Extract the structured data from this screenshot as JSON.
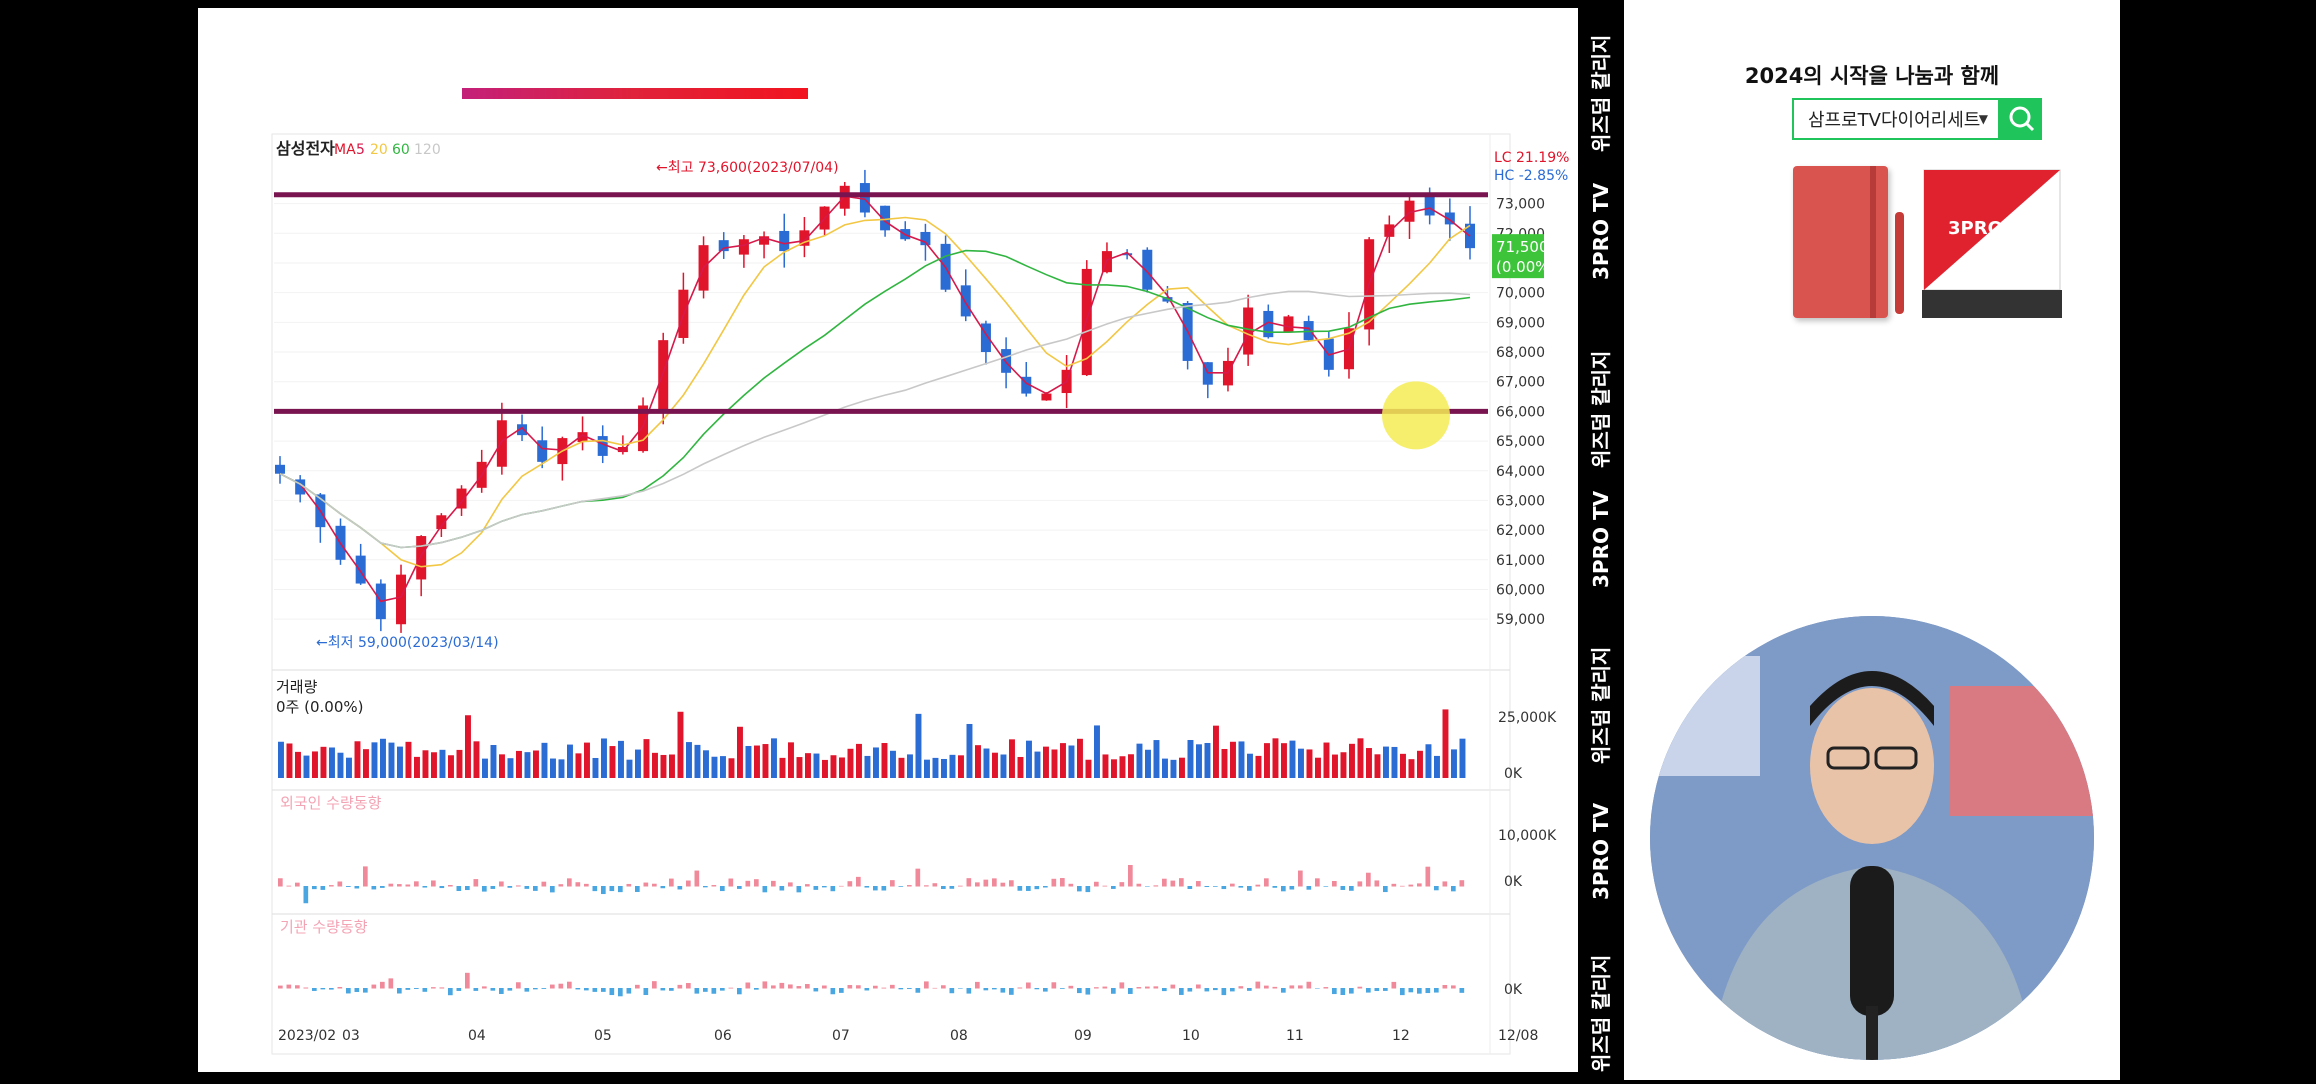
{
  "banner": {
    "title": "2024의 시작을 나눔과 함께",
    "select_value": "삼프로TV다이어리세트"
  },
  "watermark": {
    "text_a": "위즈덤 칼리지",
    "text_b": "3PRO TV"
  },
  "colors": {
    "up": "#e0142b",
    "down": "#2a6bd4",
    "accent_green": "#1fc45b",
    "band": "#7a1450",
    "ma5": "#d6194a",
    "ma20": "#f2c744",
    "ma60": "#31b541",
    "ma120": "#c8c8c8"
  },
  "chart_data": {
    "type": "candlestick",
    "title": "삼성전자",
    "ma_label": "MA",
    "ma_periods": [
      "5",
      "20",
      "60",
      "120"
    ],
    "stats": {
      "lc": "LC  21.19%",
      "hc": "HC  -2.85%"
    },
    "price_tag": {
      "value": "71,500",
      "change": "(0.00%)"
    },
    "y_ticks": [
      "73,000",
      "72,000",
      "71,000",
      "70,000",
      "69,000",
      "68,000",
      "67,000",
      "66,000",
      "65,000",
      "64,000",
      "63,000",
      "62,000",
      "61,000",
      "60,000",
      "59,000"
    ],
    "ylim": [
      58500,
      74200
    ],
    "high_label": "←최고 73,600(2023/07/04)",
    "low_label": "←최저 59,000(2023/03/14)",
    "support_line": 66000,
    "resistance_line": 73300,
    "x_ticks": [
      "2023/02",
      "03",
      "04",
      "05",
      "06",
      "07",
      "08",
      "09",
      "10",
      "11",
      "12",
      "12/08"
    ],
    "close_approx": [
      63900,
      63200,
      62100,
      61000,
      60200,
      59000,
      60500,
      61800,
      62500,
      63400,
      64300,
      65700,
      65200,
      64300,
      65100,
      65300,
      64500,
      64800,
      66200,
      68400,
      70100,
      71600,
      71400,
      71800,
      71900,
      71400,
      72100,
      72900,
      73600,
      72700,
      72100,
      71800,
      71600,
      70100,
      69200,
      68000,
      67300,
      66600,
      66600,
      67400,
      70800,
      71400,
      71300,
      70100,
      69700,
      67700,
      66900,
      67700,
      69500,
      68500,
      69200,
      68400,
      67400,
      68800,
      71800,
      72300,
      73100,
      72600,
      72300,
      71500
    ],
    "volume": {
      "label": "거래량",
      "value": "0주 (0.00%)",
      "y_ticks": [
        "25,000K",
        "0K"
      ]
    },
    "foreign": {
      "label": "외국인 수량동향",
      "y_ticks": [
        "10,000K",
        "0K"
      ]
    },
    "institution": {
      "label": "기관 수량동향",
      "y_ticks": [
        "0K"
      ]
    }
  }
}
